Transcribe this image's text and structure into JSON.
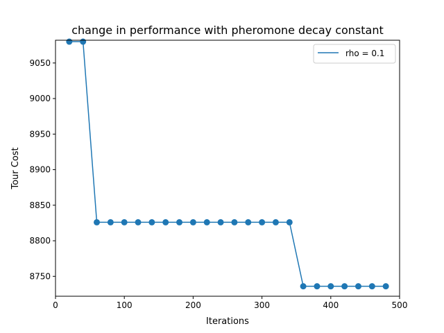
{
  "chart_data": {
    "type": "line",
    "title": "change in performance with pheromone decay constant",
    "xlabel": "Iterations",
    "ylabel": "Tour Cost",
    "xlim": [
      0,
      500
    ],
    "ylim": [
      8722,
      9082
    ],
    "xticks": [
      0,
      100,
      200,
      300,
      400,
      500
    ],
    "yticks": [
      8750,
      8800,
      8850,
      8900,
      8950,
      9000,
      9050
    ],
    "grid": false,
    "legend_position": "upper-right",
    "series": [
      {
        "name": "rho = 0.1",
        "color": "#1f77b4",
        "marker": "circle",
        "x": [
          20,
          40,
          60,
          80,
          100,
          120,
          140,
          160,
          180,
          200,
          220,
          240,
          260,
          280,
          300,
          320,
          340,
          360,
          380,
          400,
          420,
          440,
          460,
          480
        ],
        "y": [
          9080,
          9080,
          8826,
          8826,
          8826,
          8826,
          8826,
          8826,
          8826,
          8826,
          8826,
          8826,
          8826,
          8826,
          8826,
          8826,
          8826,
          8736,
          8736,
          8736,
          8736,
          8736,
          8736,
          8736
        ]
      }
    ]
  }
}
